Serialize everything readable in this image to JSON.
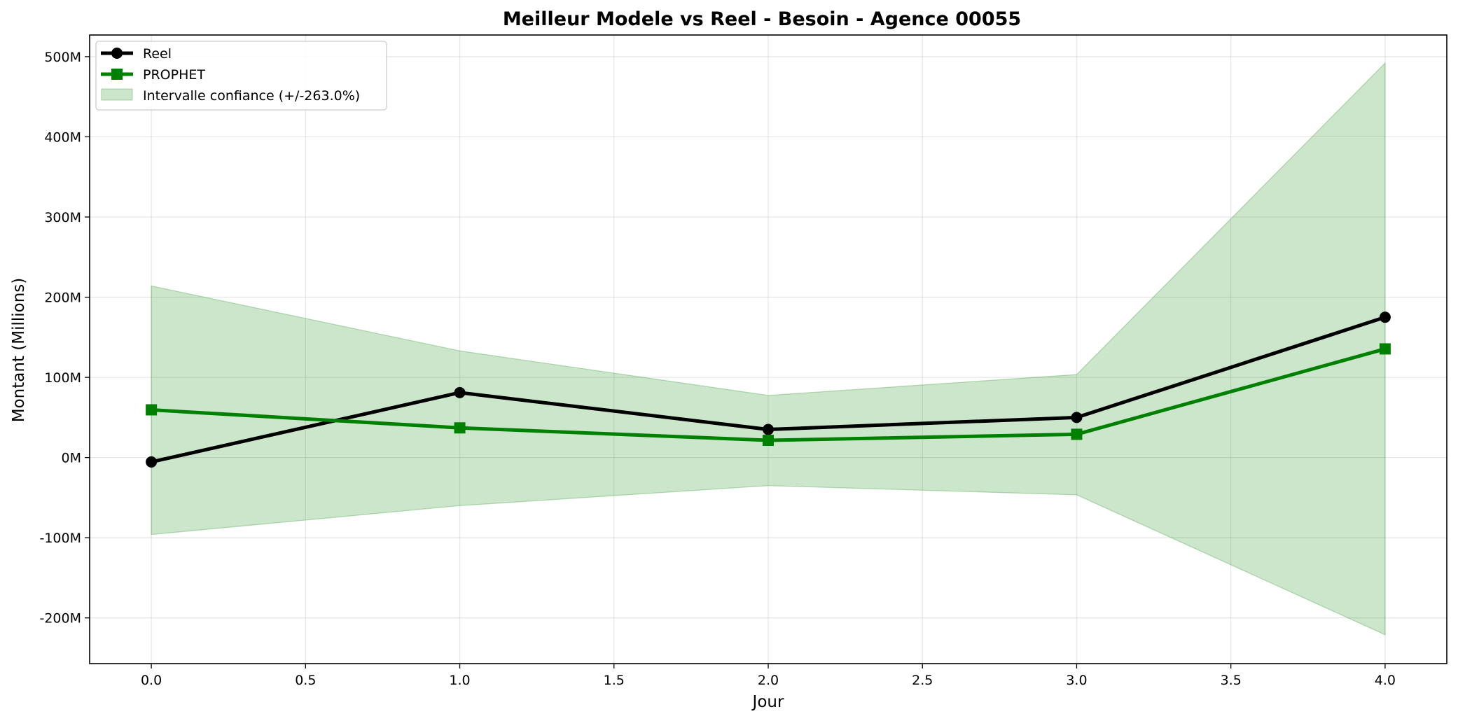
{
  "chart_data": {
    "type": "line",
    "title": "Meilleur Modele vs Reel - Besoin - Agence 00055",
    "xlabel": "Jour",
    "ylabel": "Montant (Millions)",
    "x": [
      0,
      1,
      2,
      3,
      4
    ],
    "xlim": [
      -0.2,
      4.2
    ],
    "ylim": [
      -257,
      527
    ],
    "xticks": [
      0.0,
      0.5,
      1.0,
      1.5,
      2.0,
      2.5,
      3.0,
      3.5,
      4.0
    ],
    "xtick_labels": [
      "0.0",
      "0.5",
      "1.0",
      "1.5",
      "2.0",
      "2.5",
      "3.0",
      "3.5",
      "4.0"
    ],
    "yticks": [
      -200,
      -100,
      0,
      100,
      200,
      300,
      400,
      500
    ],
    "ytick_labels": [
      "-200M",
      "-100M",
      "0M",
      "100M",
      "200M",
      "300M",
      "400M",
      "500M"
    ],
    "grid": true,
    "legend_position": "top-left",
    "series": [
      {
        "name": "Reel",
        "values": [
          -5.5,
          81,
          35,
          50,
          175
        ],
        "color": "#000000",
        "marker": "circle"
      },
      {
        "name": "PROPHET",
        "values": [
          59.5,
          37,
          21.5,
          29,
          135.5
        ],
        "color": "#008000",
        "marker": "square"
      }
    ],
    "band": {
      "name": "Intervalle confiance (+/-263.0%)",
      "upper": [
        214,
        133,
        77.5,
        103.5,
        492
      ],
      "lower": [
        -96,
        -60,
        -35,
        -46.5,
        -221
      ],
      "color": "#008000"
    }
  }
}
